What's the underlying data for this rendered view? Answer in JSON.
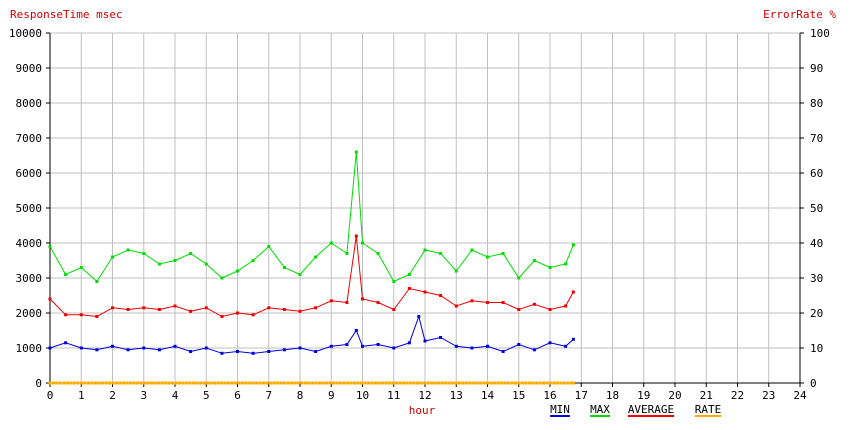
{
  "chart_data": {
    "type": "line",
    "title_left": "ResponseTime msec",
    "title_right": "ErrorRate %",
    "xlabel": "hour",
    "xlim": [
      0,
      24
    ],
    "ylim": [
      0,
      10000
    ],
    "y2lim": [
      0,
      100
    ],
    "x_ticks": [
      "0",
      "1",
      "2",
      "3",
      "4",
      "5",
      "6",
      "7",
      "8",
      "9",
      "10",
      "11",
      "12",
      "13",
      "14",
      "15",
      "16",
      "17",
      "18",
      "19",
      "20",
      "21",
      "22",
      "23",
      "24"
    ],
    "y_ticks": [
      "0",
      "1000",
      "2000",
      "3000",
      "4000",
      "5000",
      "6000",
      "7000",
      "8000",
      "9000",
      "10000"
    ],
    "y2_ticks": [
      "0",
      "10",
      "20",
      "30",
      "40",
      "50",
      "60",
      "70",
      "80",
      "90",
      "100"
    ],
    "grid": true,
    "legend_position": "bottom-right",
    "series": [
      {
        "name": "MIN",
        "color": "#0000dd",
        "x": [
          0,
          0.5,
          1,
          1.5,
          2,
          2.5,
          3,
          3.5,
          4,
          4.5,
          5,
          5.5,
          6,
          6.5,
          7,
          7.5,
          8,
          8.5,
          9,
          9.5,
          9.8,
          10,
          10.5,
          11,
          11.5,
          11.8,
          12,
          12.5,
          13,
          13.5,
          14,
          14.5,
          15,
          15.5,
          16,
          16.5,
          16.75
        ],
        "y": [
          1000,
          1150,
          1000,
          950,
          1050,
          950,
          1000,
          950,
          1050,
          900,
          1000,
          850,
          900,
          850,
          900,
          950,
          1000,
          900,
          1050,
          1100,
          1500,
          1050,
          1100,
          1000,
          1150,
          1900,
          1200,
          1300,
          1050,
          1000,
          1050,
          900,
          1100,
          950,
          1150,
          1050,
          1250
        ]
      },
      {
        "name": "MAX",
        "color": "#00dd00",
        "x": [
          0,
          0.5,
          1,
          1.5,
          2,
          2.5,
          3,
          3.5,
          4,
          4.5,
          5,
          5.5,
          6,
          6.5,
          7,
          7.5,
          8,
          8.5,
          9,
          9.5,
          9.8,
          10,
          10.5,
          11,
          11.5,
          12,
          12.5,
          13,
          13.5,
          14,
          14.5,
          15,
          15.5,
          16,
          16.5,
          16.75
        ],
        "y": [
          3900,
          3100,
          3300,
          2900,
          3600,
          3800,
          3700,
          3400,
          3500,
          3700,
          3400,
          3000,
          3200,
          3500,
          3900,
          3300,
          3100,
          3600,
          4000,
          3700,
          6600,
          4000,
          3700,
          2900,
          3100,
          3800,
          3700,
          3200,
          3800,
          3600,
          3700,
          3000,
          3500,
          3300,
          3400,
          3950
        ]
      },
      {
        "name": "AVERAGE",
        "color": "#ee0000",
        "x": [
          0,
          0.5,
          1,
          1.5,
          2,
          2.5,
          3,
          3.5,
          4,
          4.5,
          5,
          5.5,
          6,
          6.5,
          7,
          7.5,
          8,
          8.5,
          9,
          9.5,
          9.8,
          10,
          10.5,
          11,
          11.5,
          12,
          12.5,
          13,
          13.5,
          14,
          14.5,
          15,
          15.5,
          16,
          16.5,
          16.75
        ],
        "y": [
          2400,
          1950,
          1950,
          1900,
          2150,
          2100,
          2150,
          2100,
          2200,
          2050,
          2150,
          1900,
          2000,
          1950,
          2150,
          2100,
          2050,
          2150,
          2350,
          2300,
          4200,
          2400,
          2300,
          2100,
          2700,
          2600,
          2500,
          2200,
          2350,
          2300,
          2300,
          2100,
          2250,
          2100,
          2200,
          2600
        ]
      },
      {
        "name": "RATE",
        "color": "#ffaa00",
        "x": [
          0,
          16.75
        ],
        "y2": [
          0,
          0
        ]
      }
    ]
  }
}
